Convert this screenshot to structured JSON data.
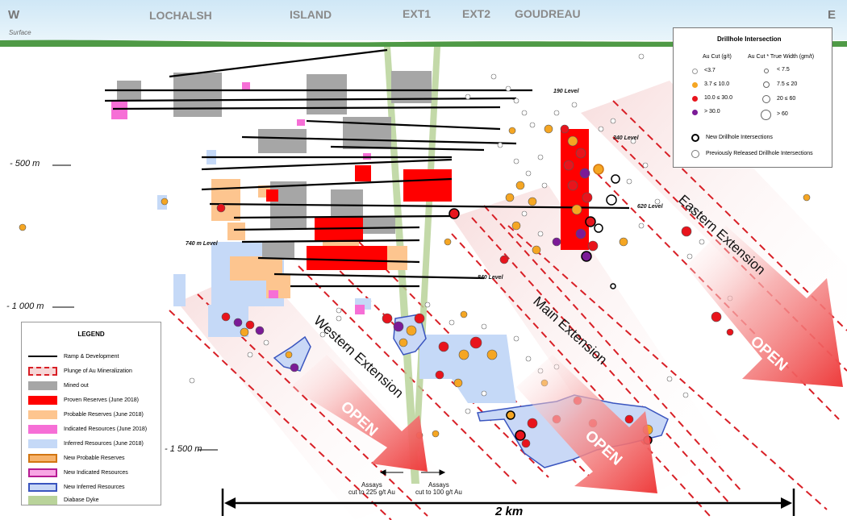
{
  "header": {
    "west": "W",
    "east": "E",
    "surface": "Surface",
    "zones": [
      "LOCHALSH",
      "ISLAND",
      "EXT1",
      "EXT2",
      "GOUDREAU"
    ]
  },
  "depths": [
    "- 500 m",
    "- 1 000 m",
    "- 1 500 m"
  ],
  "levels": [
    "190 Level",
    "340 Level",
    "620 Level",
    "740 m Level",
    "840 Level"
  ],
  "extensions": [
    "Eastern Extension",
    "Main Extension",
    "Western Extension"
  ],
  "open_label": "OPEN",
  "assays": {
    "left": "Assays\ncut to 225 g/t Au",
    "right": "Assays\ncut to 100 g/t Au"
  },
  "scale_label": "2 km",
  "legend": {
    "title": "LEGEND",
    "items": [
      {
        "label": "Ramp & Development",
        "kind": "line",
        "color": "#000000"
      },
      {
        "label": "Plunge of Au Mineralization",
        "kind": "dash",
        "color": "#d81f26"
      },
      {
        "label": "Mined out",
        "kind": "fill",
        "color": "#a6a6a6"
      },
      {
        "label": "Proven Reserves (June 2018)",
        "kind": "fill",
        "color": "#ff0000"
      },
      {
        "label": "Probable Reserves (June 2018)",
        "kind": "fill",
        "color": "#fdc58f"
      },
      {
        "label": "Indicated Resources (June 2018)",
        "kind": "fill",
        "color": "#f66fd6"
      },
      {
        "label": "Inferred Resources (June 2018)",
        "kind": "fill",
        "color": "#c5d9f7"
      },
      {
        "label": "New Probable Reserves",
        "kind": "outline",
        "color": "#f7b36c",
        "border": "#d27612"
      },
      {
        "label": "New Indicated Resources",
        "kind": "outline",
        "color": "#f8a6e4",
        "border": "#b61b93"
      },
      {
        "label": "New Inferred Resources",
        "kind": "outline",
        "color": "#c9d8f6",
        "border": "#3a55bf"
      },
      {
        "label": "Diabase Dyke",
        "kind": "fill",
        "color": "#b9d39a"
      }
    ]
  },
  "drillhole_legend": {
    "title": "Drillhole Intersection",
    "col1_header": "Au Cut (g/t)",
    "col2_header": "Au Cut * True Width  (gm/t)",
    "grades": [
      {
        "label": "<3.7",
        "color": "#ffffff"
      },
      {
        "label": "3.7 ≤ 10.0",
        "color": "#f5a623"
      },
      {
        "label": "10.0 ≤ 30.0",
        "color": "#e8141c"
      },
      {
        "label": "> 30.0",
        "color": "#7b1b97"
      }
    ],
    "widths": [
      "< 7.5",
      "7.5 ≤ 20",
      "20 ≤ 60",
      "> 60"
    ],
    "new_label": "New Drillhole Intersections",
    "prev_label": "Previously Released Drillhole Intersections"
  }
}
